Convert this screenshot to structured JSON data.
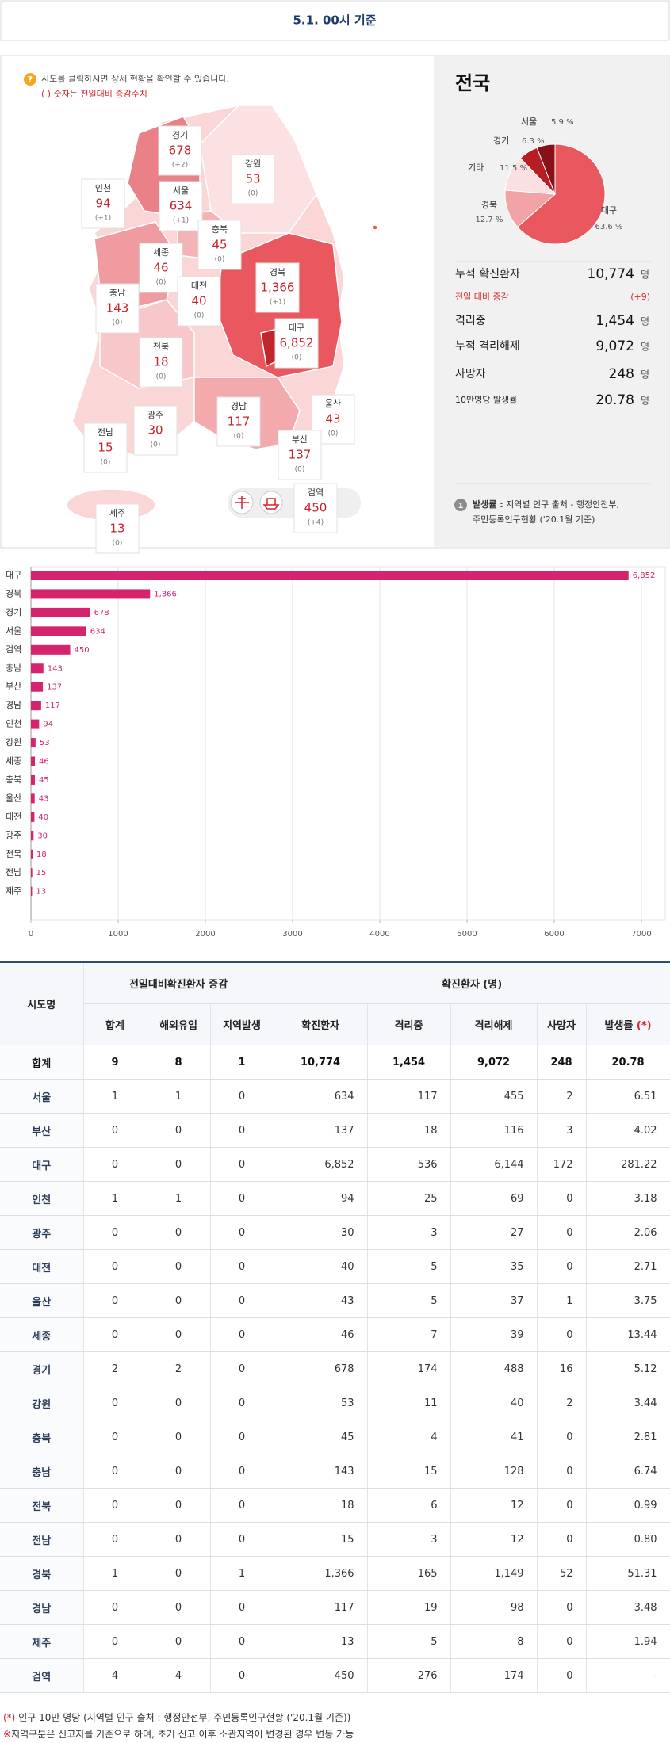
{
  "header": {
    "title": "5.1. 00시 기준"
  },
  "notice": {
    "icon": "?",
    "text": "시도를 클릭하시면 상세 현황을 확인할 수 있습니다.",
    "sub": "( ) 숫자는 전일대비 증감수치"
  },
  "map": {
    "regions": [
      {
        "name": "경기",
        "count": "678",
        "change": "(+2)"
      },
      {
        "name": "강원",
        "count": "53",
        "change": "(0)"
      },
      {
        "name": "인천",
        "count": "94",
        "change": "(+1)"
      },
      {
        "name": "서울",
        "count": "634",
        "change": "(+1)"
      },
      {
        "name": "충북",
        "count": "45",
        "change": "(0)"
      },
      {
        "name": "세종",
        "count": "46",
        "change": "(0)"
      },
      {
        "name": "대전",
        "count": "40",
        "change": "(0)"
      },
      {
        "name": "경북",
        "count": "1,366",
        "change": "(+1)"
      },
      {
        "name": "충남",
        "count": "143",
        "change": "(0)"
      },
      {
        "name": "대구",
        "count": "6,852",
        "change": "(0)"
      },
      {
        "name": "전북",
        "count": "18",
        "change": "(0)"
      },
      {
        "name": "광주",
        "count": "30",
        "change": "(0)"
      },
      {
        "name": "경남",
        "count": "117",
        "change": "(0)"
      },
      {
        "name": "울산",
        "count": "43",
        "change": "(0)"
      },
      {
        "name": "전남",
        "count": "15",
        "change": "(0)"
      },
      {
        "name": "부산",
        "count": "137",
        "change": "(0)"
      },
      {
        "name": "검역",
        "count": "450",
        "change": "(+4)"
      },
      {
        "name": "제주",
        "count": "13",
        "change": "(0)"
      }
    ]
  },
  "national": {
    "title": "전국",
    "summary": [
      {
        "label": "누적 확진환자",
        "value": "10,774",
        "unit": "명"
      },
      {
        "label": "전일 대비 증감",
        "value": "(+9)"
      },
      {
        "label": "격리중",
        "value": "1,454",
        "unit": "명"
      },
      {
        "label": "누적 격리해제",
        "value": "9,072",
        "unit": "명"
      },
      {
        "label": "사망자",
        "value": "248",
        "unit": "명"
      },
      {
        "label": "10만명당 발생률",
        "value": "20.78",
        "unit": "명"
      }
    ],
    "note": {
      "icon": "1",
      "title": "발생률 :",
      "text": "지역별 인구 출처 - 행정안전부,",
      "text2": "주민등록인구현황 ('20.1월 기준)"
    }
  },
  "chart_data": [
    {
      "type": "pie",
      "categories": [
        "대구",
        "경북",
        "기타",
        "경기",
        "서울"
      ],
      "values": [
        63.6,
        12.7,
        11.5,
        6.3,
        5.9
      ],
      "value_labels": [
        "63.6 %",
        "12.7 %",
        "11.5 %",
        "6.3 %",
        "5.9 %"
      ],
      "colors": [
        "#e8585e",
        "#f2a3a6",
        "#fbe0e1",
        "#b81d24",
        "#8a1017"
      ]
    },
    {
      "type": "bar",
      "orientation": "horizontal",
      "categories": [
        "대구",
        "경북",
        "경기",
        "서울",
        "검역",
        "충남",
        "부산",
        "경남",
        "인천",
        "강원",
        "세종",
        "충북",
        "울산",
        "대전",
        "광주",
        "전북",
        "전남",
        "제주"
      ],
      "values": [
        6852,
        1366,
        678,
        634,
        450,
        143,
        137,
        117,
        94,
        53,
        46,
        45,
        43,
        40,
        30,
        18,
        15,
        13
      ],
      "value_labels": [
        "6,852",
        "1,366",
        "678",
        "634",
        "450",
        "143",
        "137",
        "117",
        "94",
        "53",
        "46",
        "45",
        "43",
        "40",
        "30",
        "18",
        "15",
        "13"
      ],
      "color": "#d6236e",
      "xlim": [
        0,
        7000
      ],
      "xticks": [
        0,
        1000,
        2000,
        3000,
        4000,
        5000,
        6000,
        7000
      ],
      "grid": true
    }
  ],
  "table": {
    "head1": [
      "시도명",
      "전일대비확진환자 증감",
      "확진환자 (명)"
    ],
    "head2": [
      "합계",
      "해외유입",
      "지역발생",
      "확진환자",
      "격리중",
      "격리해제",
      "사망자",
      "발생률"
    ],
    "head2_mark": "(*)",
    "rows": [
      [
        "합계",
        "9",
        "8",
        "1",
        "10,774",
        "1,454",
        "9,072",
        "248",
        "20.78"
      ],
      [
        "서울",
        "1",
        "1",
        "0",
        "634",
        "117",
        "455",
        "2",
        "6.51"
      ],
      [
        "부산",
        "0",
        "0",
        "0",
        "137",
        "18",
        "116",
        "3",
        "4.02"
      ],
      [
        "대구",
        "0",
        "0",
        "0",
        "6,852",
        "536",
        "6,144",
        "172",
        "281.22"
      ],
      [
        "인천",
        "1",
        "1",
        "0",
        "94",
        "25",
        "69",
        "0",
        "3.18"
      ],
      [
        "광주",
        "0",
        "0",
        "0",
        "30",
        "3",
        "27",
        "0",
        "2.06"
      ],
      [
        "대전",
        "0",
        "0",
        "0",
        "40",
        "5",
        "35",
        "0",
        "2.71"
      ],
      [
        "울산",
        "0",
        "0",
        "0",
        "43",
        "5",
        "37",
        "1",
        "3.75"
      ],
      [
        "세종",
        "0",
        "0",
        "0",
        "46",
        "7",
        "39",
        "0",
        "13.44"
      ],
      [
        "경기",
        "2",
        "2",
        "0",
        "678",
        "174",
        "488",
        "16",
        "5.12"
      ],
      [
        "강원",
        "0",
        "0",
        "0",
        "53",
        "11",
        "40",
        "2",
        "3.44"
      ],
      [
        "충북",
        "0",
        "0",
        "0",
        "45",
        "4",
        "41",
        "0",
        "2.81"
      ],
      [
        "충남",
        "0",
        "0",
        "0",
        "143",
        "15",
        "128",
        "0",
        "6.74"
      ],
      [
        "전북",
        "0",
        "0",
        "0",
        "18",
        "6",
        "12",
        "0",
        "0.99"
      ],
      [
        "전남",
        "0",
        "0",
        "0",
        "15",
        "3",
        "12",
        "0",
        "0.80"
      ],
      [
        "경북",
        "1",
        "0",
        "1",
        "1,366",
        "165",
        "1,149",
        "52",
        "51.31"
      ],
      [
        "경남",
        "0",
        "0",
        "0",
        "117",
        "19",
        "98",
        "0",
        "3.48"
      ],
      [
        "제주",
        "0",
        "0",
        "0",
        "13",
        "5",
        "8",
        "0",
        "1.94"
      ],
      [
        "검역",
        "4",
        "4",
        "0",
        "450",
        "276",
        "174",
        "0",
        "-"
      ]
    ]
  },
  "footnotes": [
    {
      "mark": "(*)",
      "text": "인구 10만 명당 (지역별 인구 출처 : 행정안전부, 주민등록인구현황 ('20.1월 기준))"
    },
    {
      "mark": "※",
      "text": "지역구분은 신고지를 기준으로 하며, 초기 신고 이후 소관지역이 변경된 경우 변동 가능"
    }
  ]
}
